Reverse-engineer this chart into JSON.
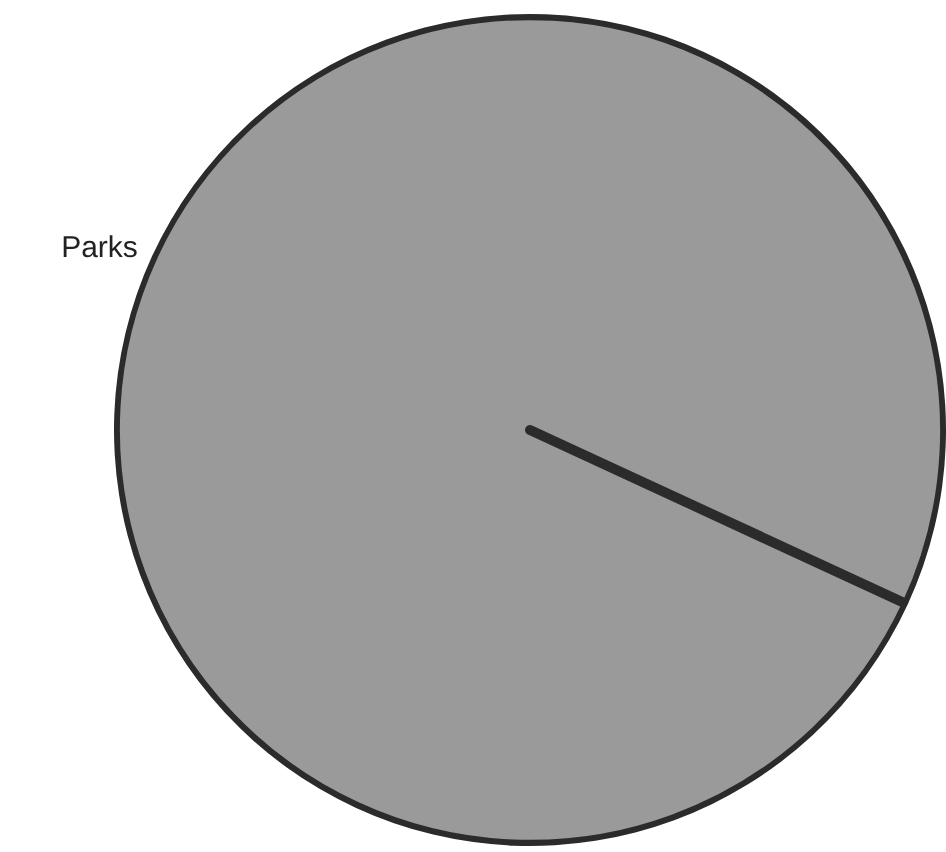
{
  "chart_data": {
    "type": "pie",
    "categories": [
      "Parks"
    ],
    "values": [
      100
    ],
    "colors": [
      "#9a9a9a"
    ]
  }
}
